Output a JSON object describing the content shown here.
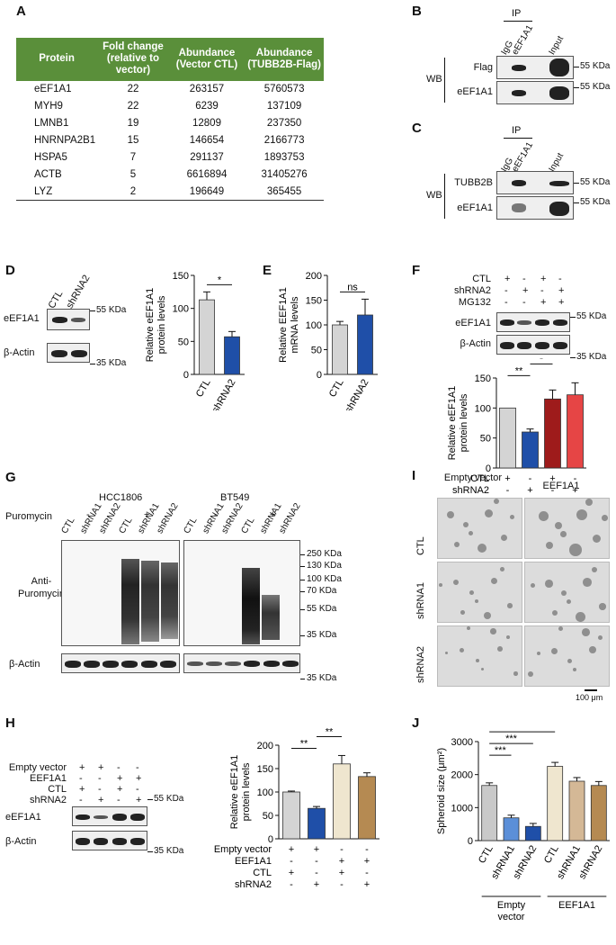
{
  "panels": {
    "A": "A",
    "B": "B",
    "C": "C",
    "D": "D",
    "E": "E",
    "F": "F",
    "G": "G",
    "H": "H",
    "I": "I",
    "J": "J"
  },
  "table": {
    "headers": [
      "Protein",
      "Fold change (relative to vector)",
      "Abundance (Vector CTL)",
      "Abundance (TUBB2B-Flag)"
    ],
    "rows": [
      [
        "eEF1A1",
        "22",
        "263157",
        "5760573"
      ],
      [
        "MYH9",
        "22",
        "6239",
        "137109"
      ],
      [
        "LMNB1",
        "19",
        "12809",
        "237350"
      ],
      [
        "HNRNPA2B1",
        "15",
        "146654",
        "2166773"
      ],
      [
        "HSPA5",
        "7",
        "291137",
        "1893753"
      ],
      [
        "ACTB",
        "5",
        "6616894",
        "31405276"
      ],
      [
        "LYZ",
        "2",
        "196649",
        "365455"
      ]
    ]
  },
  "blotB": {
    "ip": "IP",
    "lanes": [
      "IgG",
      "eEF1A1",
      "Input"
    ],
    "wb": "WB",
    "rows": [
      "Flag",
      "eEF1A1"
    ],
    "kda": [
      "55 KDa",
      "55 KDa"
    ]
  },
  "blotC": {
    "ip": "IP",
    "lanes": [
      "IgG",
      "eEF1A1",
      "Input"
    ],
    "wb": "WB",
    "rows": [
      "TUBB2B",
      "eEF1A1"
    ],
    "kda": [
      "55 KDa",
      "55 KDa"
    ]
  },
  "blotD": {
    "lanes": [
      "CTL",
      "shRNA2"
    ],
    "rows": [
      "eEF1A1",
      "β-Actin"
    ],
    "kda": [
      "55 KDa",
      "35 KDa"
    ]
  },
  "blotF": {
    "conds": [
      {
        "label": "CTL",
        "signs": [
          "+",
          "-",
          "+",
          "-"
        ]
      },
      {
        "label": "shRNA2",
        "signs": [
          "-",
          "+",
          "-",
          "+"
        ]
      },
      {
        "label": "MG132",
        "signs": [
          "-",
          "-",
          "+",
          "+"
        ]
      }
    ],
    "rows": [
      "eEF1A1",
      "β-Actin"
    ],
    "kda": [
      "55 KDa",
      "35 KDa"
    ]
  },
  "blotG": {
    "cells": [
      "HCC1806",
      "BT549"
    ],
    "treat": "Puromycin",
    "treat_signs": [
      "-",
      "+",
      "-",
      "+"
    ],
    "lanes": [
      "CTL",
      "shRNA1",
      "shRNA2",
      "CTL",
      "shRNA1",
      "shRNA2"
    ],
    "rows": [
      "Anti-\nPuromycin",
      "β-Actin"
    ],
    "kda": [
      "250 KDa",
      "130 KDa",
      "100 KDa",
      "70 KDa",
      "55 KDa",
      "35 KDa",
      "35 KDa"
    ]
  },
  "blotH": {
    "conds": [
      {
        "label": "Empty vector",
        "signs": [
          "+",
          "+",
          "-",
          "-"
        ]
      },
      {
        "label": "EEF1A1",
        "signs": [
          "-",
          "-",
          "+",
          "+"
        ]
      },
      {
        "label": "CTL",
        "signs": [
          "+",
          "-",
          "+",
          "-"
        ]
      },
      {
        "label": "shRNA2",
        "signs": [
          "-",
          "+",
          "-",
          "+"
        ]
      }
    ],
    "rows": [
      "eEF1A1",
      "β-Actin"
    ],
    "kda": [
      "55 KDa",
      "35 KDa"
    ]
  },
  "imagesI": {
    "cols": [
      "Empty vector",
      "EEF1A1"
    ],
    "rows": [
      "CTL",
      "shRNA1",
      "shRNA2"
    ],
    "scale": "100 μm"
  },
  "chart_data": [
    {
      "id": "D",
      "type": "bar",
      "categories": [
        "CTL",
        "shRNA2"
      ],
      "values": [
        113,
        57
      ],
      "errors": [
        12,
        8
      ],
      "colors": [
        "#d4d4d4",
        "#1f4fa8"
      ],
      "ylabel": "Relative eEF1A1 protein levels",
      "ylim": [
        0,
        150
      ],
      "yticks": [
        0,
        50,
        100,
        150
      ],
      "sig": [
        {
          "from": 0,
          "to": 1,
          "label": "*"
        }
      ]
    },
    {
      "id": "E",
      "type": "bar",
      "categories": [
        "CTL",
        "shRNA2"
      ],
      "values": [
        100,
        120
      ],
      "errors": [
        7,
        32
      ],
      "colors": [
        "#d4d4d4",
        "#1f4fa8"
      ],
      "ylabel": "Relative EEF1A1 mRNA levels",
      "ylim": [
        0,
        200
      ],
      "yticks": [
        0,
        50,
        100,
        150,
        200
      ],
      "sig": [
        {
          "from": 0,
          "to": 1,
          "label": "ns"
        }
      ]
    },
    {
      "id": "F",
      "type": "bar",
      "categories": [
        "CTL",
        "shRNA2",
        "CTL+MG132",
        "shRNA2+MG132"
      ],
      "values": [
        100,
        60,
        115,
        122
      ],
      "errors": [
        0,
        5,
        15,
        20
      ],
      "colors": [
        "#d4d4d4",
        "#1f4fa8",
        "#9e1b1b",
        "#e64545"
      ],
      "ylabel": "Relative eEF1A1 protein levels",
      "ylim": [
        0,
        150
      ],
      "yticks": [
        0,
        50,
        100,
        150
      ],
      "sig": [
        {
          "from": 0,
          "to": 1,
          "label": "**"
        },
        {
          "from": 1,
          "to": 2,
          "label": "*"
        },
        {
          "from": 1,
          "to": 3,
          "label": "*"
        }
      ],
      "conds": [
        {
          "label": "CTL",
          "signs": [
            "+",
            "-",
            "+",
            "-"
          ]
        },
        {
          "label": "shRNA2",
          "signs": [
            "-",
            "+",
            "-",
            "+"
          ]
        },
        {
          "label": "MG132",
          "signs": [
            "-",
            "-",
            "+",
            "+"
          ]
        }
      ]
    },
    {
      "id": "H",
      "type": "bar",
      "categories": [
        "EV+CTL",
        "EV+shRNA2",
        "EEF1A1+CTL",
        "EEF1A1+shRNA2"
      ],
      "values": [
        100,
        65,
        160,
        133
      ],
      "errors": [
        2,
        4,
        18,
        8
      ],
      "colors": [
        "#d4d4d4",
        "#1f4fa8",
        "#efe6cf",
        "#b58a52"
      ],
      "ylabel": "Relative eEF1A1 protein levels",
      "ylim": [
        0,
        200
      ],
      "yticks": [
        0,
        50,
        100,
        150,
        200
      ],
      "sig": [
        {
          "from": 0,
          "to": 1,
          "label": "**"
        },
        {
          "from": 1,
          "to": 2,
          "label": "**"
        },
        {
          "from": 0,
          "to": 2,
          "label": "*"
        },
        {
          "from": 0,
          "to": 3,
          "label": "***"
        }
      ],
      "conds": [
        {
          "label": "Empty vector",
          "signs": [
            "+",
            "+",
            "-",
            "-"
          ]
        },
        {
          "label": "EEF1A1",
          "signs": [
            "-",
            "-",
            "+",
            "+"
          ]
        },
        {
          "label": "CTL",
          "signs": [
            "+",
            "-",
            "+",
            "-"
          ]
        },
        {
          "label": "shRNA2",
          "signs": [
            "-",
            "+",
            "-",
            "+"
          ]
        }
      ]
    },
    {
      "id": "J",
      "type": "bar",
      "categories": [
        "CTL",
        "shRNA1",
        "shRNA2",
        "CTL",
        "shRNA1",
        "shRNA2"
      ],
      "groups": [
        "Empty vector",
        "EEF1A1"
      ],
      "values": [
        1670,
        690,
        430,
        2250,
        1800,
        1670
      ],
      "errors": [
        80,
        80,
        90,
        120,
        110,
        120
      ],
      "colors": [
        "#c9c9c9",
        "#5b8fd8",
        "#1f4fa8",
        "#efe6cf",
        "#d4b896",
        "#b58a52"
      ],
      "ylabel": "Spheroid size (μm²)",
      "ylim": [
        0,
        3000
      ],
      "yticks": [
        0,
        1000,
        2000,
        3000
      ],
      "sig": [
        {
          "from": 0,
          "to": 1,
          "label": "***"
        },
        {
          "from": 0,
          "to": 2,
          "label": "***"
        },
        {
          "from": 0,
          "to": 3,
          "label": "***"
        },
        {
          "from": 3,
          "to": 4,
          "label": "*"
        },
        {
          "from": 3,
          "to": 5,
          "label": "**"
        }
      ]
    }
  ]
}
